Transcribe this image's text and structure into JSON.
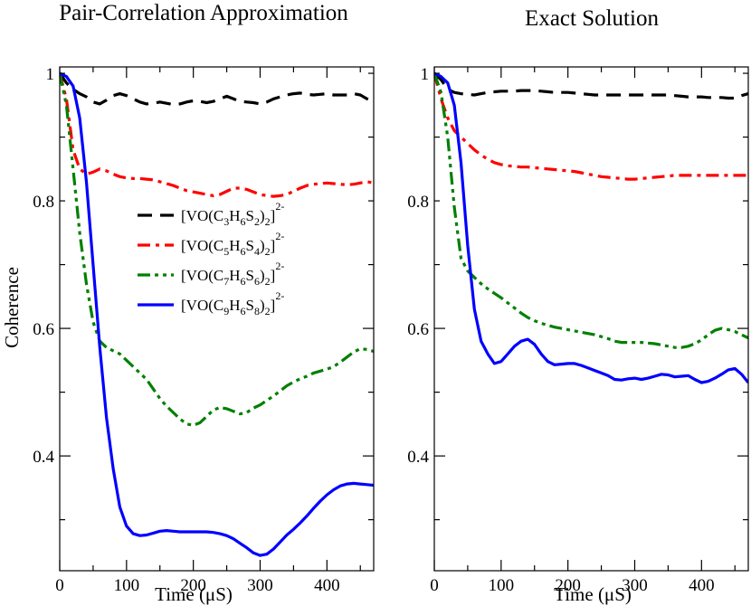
{
  "chart_data": [
    {
      "type": "line",
      "title": "Pair-Correlation Approximation",
      "xlabel": "Time (μS)",
      "ylabel": "Coherence",
      "xlim": [
        0,
        470
      ],
      "ylim": [
        0.22,
        1.01
      ],
      "xticks": [
        0,
        100,
        200,
        300,
        400
      ],
      "xtick_labels": [
        "0",
        "100",
        "200",
        "300",
        "400"
      ],
      "yticks": [
        0.4,
        0.6,
        0.8,
        1.0
      ],
      "ytick_labels": [
        "0.4",
        "0.6",
        "0.8",
        "1"
      ],
      "legend": "center-left",
      "series": [
        {
          "name": "[VO(C3H6S2)2]2-",
          "label_parts": [
            [
              "[VO(C",
              ""
            ],
            [
              "3",
              "sub"
            ],
            [
              "H",
              ""
            ],
            [
              "6",
              "sub"
            ],
            [
              "S",
              ""
            ],
            [
              "2",
              "sub"
            ],
            [
              ")",
              ""
            ],
            [
              "2",
              "sub"
            ],
            [
              "]",
              ""
            ],
            [
              "2-",
              "sup"
            ]
          ],
          "color": "#000000",
          "dash": "16,9",
          "x": [
            0,
            10,
            20,
            30,
            40,
            50,
            60,
            70,
            80,
            90,
            100,
            110,
            120,
            130,
            140,
            150,
            160,
            170,
            180,
            190,
            200,
            210,
            220,
            230,
            240,
            250,
            260,
            270,
            280,
            290,
            300,
            310,
            320,
            330,
            340,
            350,
            360,
            370,
            380,
            390,
            400,
            410,
            420,
            430,
            440,
            450,
            460,
            470
          ],
          "y": [
            1.0,
            0.985,
            0.975,
            0.968,
            0.963,
            0.955,
            0.952,
            0.958,
            0.965,
            0.968,
            0.965,
            0.96,
            0.955,
            0.952,
            0.953,
            0.955,
            0.953,
            0.951,
            0.952,
            0.955,
            0.957,
            0.956,
            0.954,
            0.956,
            0.96,
            0.964,
            0.96,
            0.956,
            0.955,
            0.954,
            0.952,
            0.955,
            0.96,
            0.963,
            0.966,
            0.968,
            0.969,
            0.967,
            0.966,
            0.967,
            0.968,
            0.966,
            0.966,
            0.966,
            0.968,
            0.966,
            0.96,
            0.955
          ]
        },
        {
          "name": "[VO(C5H6S4)2]2-",
          "label_parts": [
            [
              "[VO(C",
              ""
            ],
            [
              "5",
              "sub"
            ],
            [
              "H",
              ""
            ],
            [
              "6",
              "sub"
            ],
            [
              "S",
              ""
            ],
            [
              "4",
              "sub"
            ],
            [
              ")",
              ""
            ],
            [
              "2",
              "sub"
            ],
            [
              "]",
              ""
            ],
            [
              "2-",
              "sup"
            ]
          ],
          "color": "#ff0000",
          "dash": "14,6,4,6",
          "x": [
            0,
            10,
            20,
            30,
            40,
            50,
            60,
            70,
            80,
            90,
            100,
            110,
            120,
            130,
            140,
            150,
            160,
            170,
            180,
            190,
            200,
            210,
            220,
            230,
            240,
            250,
            260,
            270,
            280,
            290,
            300,
            310,
            320,
            330,
            340,
            350,
            360,
            370,
            380,
            390,
            400,
            410,
            420,
            430,
            440,
            450,
            460,
            470
          ],
          "y": [
            1.0,
            0.96,
            0.88,
            0.85,
            0.842,
            0.845,
            0.85,
            0.847,
            0.842,
            0.838,
            0.836,
            0.835,
            0.835,
            0.834,
            0.833,
            0.83,
            0.827,
            0.824,
            0.82,
            0.816,
            0.814,
            0.812,
            0.81,
            0.808,
            0.81,
            0.815,
            0.82,
            0.82,
            0.818,
            0.814,
            0.81,
            0.808,
            0.807,
            0.808,
            0.81,
            0.815,
            0.82,
            0.824,
            0.826,
            0.827,
            0.828,
            0.827,
            0.826,
            0.825,
            0.826,
            0.828,
            0.83,
            0.828
          ]
        },
        {
          "name": "[VO(C7H6S6)2]2-",
          "label_parts": [
            [
              "[VO(C",
              ""
            ],
            [
              "7",
              "sub"
            ],
            [
              "H",
              ""
            ],
            [
              "6",
              "sub"
            ],
            [
              "S",
              ""
            ],
            [
              "6",
              "sub"
            ],
            [
              ")",
              ""
            ],
            [
              "2",
              "sub"
            ],
            [
              "]",
              ""
            ],
            [
              "2-",
              "sup"
            ]
          ],
          "color": "#008000",
          "dash": "14,5,4,5,4,5",
          "x": [
            0,
            10,
            20,
            30,
            40,
            50,
            60,
            70,
            80,
            90,
            100,
            110,
            120,
            130,
            140,
            150,
            160,
            170,
            180,
            190,
            200,
            210,
            220,
            230,
            240,
            250,
            260,
            270,
            280,
            290,
            300,
            310,
            320,
            330,
            340,
            350,
            360,
            370,
            380,
            390,
            400,
            410,
            420,
            430,
            440,
            450,
            460,
            470
          ],
          "y": [
            1.0,
            0.95,
            0.85,
            0.75,
            0.67,
            0.61,
            0.58,
            0.57,
            0.565,
            0.56,
            0.55,
            0.54,
            0.53,
            0.52,
            0.505,
            0.49,
            0.478,
            0.468,
            0.458,
            0.45,
            0.448,
            0.452,
            0.462,
            0.472,
            0.476,
            0.474,
            0.47,
            0.466,
            0.468,
            0.475,
            0.48,
            0.487,
            0.494,
            0.502,
            0.51,
            0.516,
            0.521,
            0.525,
            0.53,
            0.533,
            0.536,
            0.54,
            0.547,
            0.555,
            0.563,
            0.568,
            0.567,
            0.564
          ]
        },
        {
          "name": "[VO(C9H6S8)2]2-",
          "label_parts": [
            [
              "[VO(C",
              ""
            ],
            [
              "9",
              "sub"
            ],
            [
              "H",
              ""
            ],
            [
              "6",
              "sub"
            ],
            [
              "S",
              ""
            ],
            [
              "8",
              "sub"
            ],
            [
              ")",
              ""
            ],
            [
              "2",
              "sub"
            ],
            [
              "]",
              ""
            ],
            [
              "2-",
              "sup"
            ]
          ],
          "color": "#0000ff",
          "dash": "",
          "x": [
            0,
            10,
            20,
            30,
            40,
            50,
            60,
            70,
            80,
            90,
            100,
            110,
            120,
            130,
            140,
            150,
            160,
            170,
            180,
            190,
            200,
            210,
            220,
            230,
            240,
            250,
            260,
            270,
            280,
            290,
            300,
            310,
            320,
            330,
            340,
            350,
            360,
            370,
            380,
            390,
            400,
            410,
            420,
            430,
            440,
            450,
            460,
            470
          ],
          "y": [
            1.0,
            0.995,
            0.98,
            0.93,
            0.83,
            0.7,
            0.57,
            0.46,
            0.38,
            0.32,
            0.29,
            0.278,
            0.275,
            0.276,
            0.279,
            0.282,
            0.283,
            0.282,
            0.281,
            0.281,
            0.281,
            0.281,
            0.281,
            0.28,
            0.278,
            0.275,
            0.27,
            0.263,
            0.256,
            0.248,
            0.244,
            0.246,
            0.254,
            0.265,
            0.276,
            0.285,
            0.295,
            0.306,
            0.318,
            0.329,
            0.339,
            0.347,
            0.353,
            0.356,
            0.357,
            0.356,
            0.355,
            0.354
          ]
        }
      ]
    },
    {
      "type": "line",
      "title": "Exact Solution",
      "xlabel": "Time (μS)",
      "ylabel": "",
      "xlim": [
        0,
        470
      ],
      "ylim": [
        0.22,
        1.01
      ],
      "xticks": [
        0,
        100,
        200,
        300,
        400
      ],
      "xtick_labels": [
        "0",
        "100",
        "200",
        "300",
        "400"
      ],
      "yticks": [
        0.4,
        0.6,
        0.8,
        1.0
      ],
      "ytick_labels": [
        "0.4",
        "0.6",
        "0.8",
        "1"
      ],
      "series": [
        {
          "color": "#000000",
          "dash": "16,9",
          "x": [
            0,
            10,
            20,
            30,
            40,
            50,
            60,
            70,
            80,
            90,
            100,
            110,
            120,
            130,
            140,
            150,
            160,
            170,
            180,
            190,
            200,
            210,
            220,
            230,
            240,
            250,
            260,
            270,
            280,
            290,
            300,
            310,
            320,
            330,
            340,
            350,
            360,
            370,
            380,
            390,
            400,
            410,
            420,
            430,
            440,
            450,
            460,
            470
          ],
          "y": [
            1.0,
            0.99,
            0.975,
            0.97,
            0.968,
            0.967,
            0.966,
            0.968,
            0.97,
            0.971,
            0.972,
            0.972,
            0.972,
            0.973,
            0.973,
            0.973,
            0.972,
            0.971,
            0.97,
            0.97,
            0.97,
            0.969,
            0.968,
            0.967,
            0.966,
            0.966,
            0.966,
            0.966,
            0.966,
            0.966,
            0.966,
            0.966,
            0.966,
            0.966,
            0.966,
            0.966,
            0.965,
            0.964,
            0.963,
            0.963,
            0.963,
            0.962,
            0.962,
            0.962,
            0.961,
            0.961,
            0.965,
            0.968
          ]
        },
        {
          "color": "#ff0000",
          "dash": "14,6,4,6",
          "x": [
            0,
            10,
            20,
            30,
            40,
            50,
            60,
            70,
            80,
            90,
            100,
            110,
            120,
            130,
            140,
            150,
            160,
            170,
            180,
            190,
            200,
            210,
            220,
            230,
            240,
            250,
            260,
            270,
            280,
            290,
            300,
            310,
            320,
            330,
            340,
            350,
            360,
            370,
            380,
            390,
            400,
            410,
            420,
            430,
            440,
            450,
            460,
            470
          ],
          "y": [
            1.0,
            0.96,
            0.93,
            0.91,
            0.9,
            0.89,
            0.88,
            0.872,
            0.865,
            0.86,
            0.857,
            0.855,
            0.854,
            0.853,
            0.853,
            0.852,
            0.851,
            0.85,
            0.849,
            0.848,
            0.847,
            0.846,
            0.844,
            0.842,
            0.84,
            0.838,
            0.837,
            0.836,
            0.835,
            0.834,
            0.834,
            0.835,
            0.836,
            0.837,
            0.838,
            0.839,
            0.84,
            0.84,
            0.84,
            0.84,
            0.84,
            0.84,
            0.84,
            0.84,
            0.84,
            0.84,
            0.84,
            0.84
          ]
        },
        {
          "color": "#008000",
          "dash": "14,5,4,5,4,5",
          "x": [
            0,
            10,
            20,
            30,
            40,
            50,
            60,
            70,
            80,
            90,
            100,
            110,
            120,
            130,
            140,
            150,
            160,
            170,
            180,
            190,
            200,
            210,
            220,
            230,
            240,
            250,
            260,
            270,
            280,
            290,
            300,
            310,
            320,
            330,
            340,
            350,
            360,
            370,
            380,
            390,
            400,
            410,
            420,
            430,
            440,
            450,
            460,
            470
          ],
          "y": [
            1.0,
            0.97,
            0.9,
            0.79,
            0.71,
            0.69,
            0.68,
            0.67,
            0.662,
            0.655,
            0.648,
            0.64,
            0.632,
            0.624,
            0.617,
            0.612,
            0.608,
            0.605,
            0.602,
            0.6,
            0.598,
            0.596,
            0.594,
            0.592,
            0.59,
            0.587,
            0.584,
            0.58,
            0.578,
            0.578,
            0.578,
            0.578,
            0.577,
            0.576,
            0.574,
            0.572,
            0.57,
            0.57,
            0.572,
            0.576,
            0.582,
            0.59,
            0.597,
            0.6,
            0.598,
            0.595,
            0.59,
            0.585
          ]
        },
        {
          "color": "#0000ff",
          "dash": "",
          "x": [
            0,
            10,
            20,
            30,
            40,
            50,
            60,
            70,
            80,
            90,
            100,
            110,
            120,
            130,
            140,
            150,
            160,
            170,
            180,
            190,
            200,
            210,
            220,
            230,
            240,
            250,
            260,
            270,
            280,
            290,
            300,
            310,
            320,
            330,
            340,
            350,
            360,
            370,
            380,
            390,
            400,
            410,
            420,
            430,
            440,
            450,
            460,
            470
          ],
          "y": [
            1.0,
            0.995,
            0.985,
            0.95,
            0.86,
            0.73,
            0.63,
            0.58,
            0.56,
            0.545,
            0.548,
            0.56,
            0.572,
            0.58,
            0.583,
            0.575,
            0.56,
            0.548,
            0.543,
            0.544,
            0.545,
            0.545,
            0.542,
            0.538,
            0.534,
            0.53,
            0.526,
            0.52,
            0.519,
            0.521,
            0.522,
            0.52,
            0.522,
            0.525,
            0.528,
            0.527,
            0.524,
            0.525,
            0.526,
            0.52,
            0.515,
            0.517,
            0.522,
            0.528,
            0.535,
            0.537,
            0.528,
            0.515
          ]
        }
      ]
    }
  ]
}
